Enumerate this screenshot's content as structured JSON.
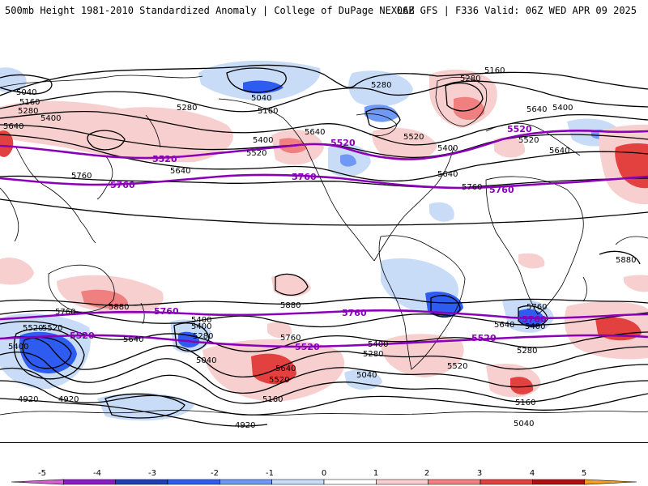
{
  "header": {
    "left": "500mb Height 1981-2010 Standardized Anomaly | College of DuPage NEXLAB",
    "right": "06Z GFS | F336 Valid: 06Z WED APR 09 2025"
  },
  "colors": {
    "neg_strong": "#2f5cf0",
    "neg_mod": "#6f99f5",
    "neg_weak": "#c8dcf8",
    "pos_weak": "#f8cfcf",
    "pos_mod": "#f08080",
    "pos_strong": "#e34040",
    "contour": "#000000",
    "highlight_contour": "#8a00b8",
    "coastline": "#000000"
  },
  "colorbar": {
    "ticks": [
      "-5",
      "-4",
      "-3",
      "-2",
      "-1",
      "0",
      "1",
      "2",
      "3",
      "4",
      "5"
    ],
    "colors": [
      "#d65fd6",
      "#8a1cc8",
      "#1f3fb8",
      "#2f5cf0",
      "#6f99f5",
      "#c8dcf8",
      "#ffffff",
      "#f8cfcf",
      "#f08080",
      "#e34040",
      "#b01010",
      "#f5a020"
    ]
  },
  "contour_labels": [
    {
      "text": "5040"
    },
    {
      "text": "5160"
    },
    {
      "text": "5280"
    },
    {
      "text": "5400"
    },
    {
      "text": "5640"
    },
    {
      "text": "5280"
    },
    {
      "text": "5040"
    },
    {
      "text": "5160"
    },
    {
      "text": "5280"
    },
    {
      "text": "5160"
    },
    {
      "text": "5280"
    },
    {
      "text": "5400"
    },
    {
      "text": "5640"
    },
    {
      "text": "5400"
    },
    {
      "text": "5520"
    },
    {
      "text": "5520"
    },
    {
      "text": "5400"
    },
    {
      "text": "5640"
    },
    {
      "text": "5760"
    },
    {
      "text": "5640"
    },
    {
      "text": "5760"
    },
    {
      "text": "5640"
    },
    {
      "text": "5520"
    },
    {
      "text": "5640"
    },
    {
      "text": "5880"
    },
    {
      "text": "5880"
    },
    {
      "text": "5880"
    },
    {
      "text": "5760"
    },
    {
      "text": "5520"
    },
    {
      "text": "5400"
    },
    {
      "text": "5640"
    },
    {
      "text": "5400"
    },
    {
      "text": "5280"
    },
    {
      "text": "5040"
    },
    {
      "text": "5760"
    },
    {
      "text": "5640"
    },
    {
      "text": "5520"
    },
    {
      "text": "5160"
    },
    {
      "text": "5400"
    },
    {
      "text": "5280"
    },
    {
      "text": "5040"
    },
    {
      "text": "4920"
    },
    {
      "text": "4920"
    },
    {
      "text": "4920"
    },
    {
      "text": "5760"
    },
    {
      "text": "5640"
    },
    {
      "text": "5400"
    },
    {
      "text": "5280"
    },
    {
      "text": "5520"
    },
    {
      "text": "5160"
    },
    {
      "text": "5040"
    },
    {
      "text": "5520"
    },
    {
      "text": "5400"
    }
  ],
  "highlight_labels": [
    {
      "text": "5520"
    },
    {
      "text": "5520"
    },
    {
      "text": "5520"
    },
    {
      "text": "5760"
    },
    {
      "text": "5760"
    },
    {
      "text": "5760"
    },
    {
      "text": "5760"
    },
    {
      "text": "5760"
    },
    {
      "text": "5520"
    },
    {
      "text": "5520"
    },
    {
      "text": "5520"
    },
    {
      "text": "5760"
    }
  ]
}
